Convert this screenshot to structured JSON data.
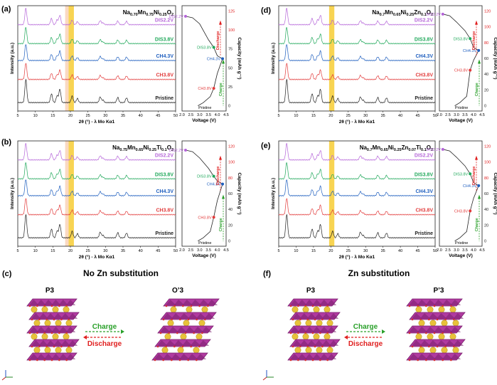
{
  "colors": {
    "DIS2.2V": "#b565d9",
    "DIS3.8V": "#1fa85a",
    "CH4.3V": "#1f5fbf",
    "CH3.8V": "#e23a3a",
    "Pristine": "#222222",
    "highlight": "#f5c518",
    "highlight_soft": "#f8c9a8",
    "discharge": "#e02020",
    "charge": "#2aa02a",
    "octa_dark": "#7a1f6e",
    "octa_light": "#b03aa0",
    "sphere": "#e8c23a"
  },
  "panels": [
    {
      "id": "a",
      "letter": "(a)",
      "title": "Na0.70Mn0.75Ni0.25O2",
      "title_html": [
        "Na",
        "0.70",
        "Mn",
        "0.75",
        "Ni",
        "0.25",
        "O",
        "2"
      ],
      "soft_band": true,
      "chart_data": {
        "type": "line",
        "xlabel": "2θ (°) - λ Mo Kα1",
        "ylabel": "Intensity (a.u.)",
        "xlim": [
          5,
          50
        ],
        "xticks": [
          5,
          10,
          15,
          20,
          25,
          30,
          35,
          40,
          45,
          50
        ],
        "series": [
          "DIS2.2V",
          "DIS3.8V",
          "CH4.3V",
          "CH3.8V",
          "Pristine"
        ],
        "highlight_2theta": [
          19.5,
          21.0
        ],
        "main_peaks_2theta": [
          7.3,
          14.6,
          16.2,
          17.0,
          20.5,
          22.0,
          28.5,
          29.3,
          33.5,
          36.0
        ]
      },
      "echem": {
        "type": "line",
        "xlabel": "Voltage (V)",
        "ylabel": "Capacity (mAh g⁻¹)",
        "xlim": [
          2.0,
          4.5
        ],
        "xticks": [
          "2.0",
          "2.5",
          "3.0",
          "3.5",
          "4.0",
          "4.5"
        ],
        "ylim": [
          0,
          125
        ],
        "yticks": [
          "0",
          "25",
          "50",
          "75",
          "100",
          "125"
        ],
        "points": [
          {
            "label": "DIS2.2V",
            "v": 2.2,
            "cap": 118
          },
          {
            "label": "DIS3.8V",
            "v": 3.8,
            "cap": 77
          },
          {
            "label": "CH4.3V",
            "v": 4.3,
            "cap": 62
          },
          {
            "label": "CH3.8V",
            "v": 3.8,
            "cap": 23
          },
          {
            "label": "Pristine",
            "v": 3.0,
            "cap": 0
          }
        ],
        "charge_label": "Charge",
        "discharge_label": "Discharge"
      }
    },
    {
      "id": "b",
      "letter": "(b)",
      "title": "Na0.75Mn0.65Ni0.25Ti0.1O2",
      "title_html": [
        "Na",
        "0.75",
        "Mn",
        "0.65",
        "Ni",
        "0.25",
        "Ti",
        "0.1",
        "O",
        "2"
      ],
      "soft_band": true,
      "chart_data": {
        "type": "line",
        "xlabel": "2θ (°) - λ Mo Kα1",
        "ylabel": "Intensity (a.u.)",
        "xlim": [
          5,
          50
        ],
        "xticks": [
          5,
          10,
          15,
          20,
          25,
          30,
          35,
          40,
          45,
          50
        ],
        "series": [
          "DIS2.2V",
          "DIS3.8V",
          "CH4.3V",
          "CH3.8V",
          "Pristine"
        ],
        "highlight_2theta": [
          19.5,
          21.0
        ],
        "main_peaks_2theta": [
          7.3,
          14.6,
          16.2,
          17.0,
          20.5,
          22.0,
          28.5,
          29.3,
          33.5,
          36.0
        ]
      },
      "echem": {
        "type": "line",
        "xlabel": "Voltage (V)",
        "ylabel": "Capacity (mAh g⁻¹)",
        "xlim": [
          2.0,
          4.5
        ],
        "xticks": [
          "2.0",
          "2.5",
          "3.0",
          "3.5",
          "4.0",
          "4.5"
        ],
        "ylim": [
          0,
          120
        ],
        "yticks": [
          "0",
          "20",
          "40",
          "60",
          "80",
          "100",
          "120"
        ],
        "points": [
          {
            "label": "DIS2.2V",
            "v": 2.2,
            "cap": 115
          },
          {
            "label": "DIS3.8V",
            "v": 3.8,
            "cap": 82
          },
          {
            "label": "CH4.3V",
            "v": 4.3,
            "cap": 72
          },
          {
            "label": "CH3.8V",
            "v": 3.8,
            "cap": 30
          },
          {
            "label": "Pristine",
            "v": 3.0,
            "cap": 0
          }
        ],
        "charge_label": "Charge",
        "discharge_label": "Discharge"
      }
    },
    {
      "id": "d",
      "letter": "(d)",
      "title": "Na0.7Mn0.65Ni0.25Zn0.1O2",
      "title_html": [
        "Na",
        "0.7",
        "Mn",
        "0.65",
        "Ni",
        "0.25",
        "Zn",
        "0.1",
        "O",
        "2"
      ],
      "soft_band": false,
      "chart_data": {
        "type": "line",
        "xlabel": "2θ (°) - λ Mo Kα1",
        "ylabel": "Intensity (a.u.)",
        "xlim": [
          5,
          50
        ],
        "xticks": [
          5,
          10,
          15,
          20,
          25,
          30,
          35,
          40,
          45,
          50
        ],
        "series": [
          "DIS2.2V",
          "DIS3.8V",
          "CH4.3V",
          "CH3.8V",
          "Pristine"
        ],
        "highlight_2theta": [
          19.5,
          21.0
        ],
        "main_peaks_2theta": [
          7.3,
          14.6,
          16.2,
          17.0,
          20.5,
          22.0,
          28.5,
          29.3,
          33.5,
          36.0
        ]
      },
      "echem": {
        "type": "line",
        "xlabel": "Voltage (V)",
        "ylabel": "Capacity (mAh g⁻¹)",
        "xlim": [
          2.0,
          4.5
        ],
        "xticks": [
          "2.0",
          "2.5",
          "3.0",
          "3.5",
          "4.0",
          "4.5"
        ],
        "ylim": [
          0,
          120
        ],
        "yticks": [
          "0",
          "20",
          "40",
          "60",
          "80",
          "100",
          "120"
        ],
        "points": [
          {
            "label": "DIS2.2V",
            "v": 2.2,
            "cap": 116
          },
          {
            "label": "DIS3.8V",
            "v": 3.8,
            "cap": 85
          },
          {
            "label": "CH4.3V",
            "v": 4.3,
            "cap": 70
          },
          {
            "label": "CH3.8V",
            "v": 3.8,
            "cap": 45
          },
          {
            "label": "Pristine",
            "v": 3.0,
            "cap": 0
          }
        ],
        "charge_label": "Charge",
        "discharge_label": "Discharge"
      }
    },
    {
      "id": "e",
      "letter": "(e)",
      "title": "Na0.7Mn0.65Ni0.25Zn0.07Ti0.1O2",
      "title_html": [
        "Na",
        "0.7",
        "Mn",
        "0.65",
        "Ni",
        "0.25",
        "Zn",
        "0.07",
        "Ti",
        "0.1",
        "O",
        "2"
      ],
      "soft_band": false,
      "chart_data": {
        "type": "line",
        "xlabel": "2θ (°) - λ Mo Kα1",
        "ylabel": "Intensity (a.u.)",
        "xlim": [
          5,
          50
        ],
        "xticks": [
          5,
          10,
          15,
          20,
          25,
          30,
          35,
          40,
          45,
          50
        ],
        "series": [
          "DIS2.2V",
          "DIS3.8V",
          "CH4.3V",
          "CH3.8V",
          "Pristine"
        ],
        "highlight_2theta": [
          19.5,
          21.0
        ],
        "main_peaks_2theta": [
          7.3,
          14.6,
          16.2,
          17.0,
          20.5,
          22.0,
          28.5,
          29.3,
          33.5,
          36.0
        ]
      },
      "echem": {
        "type": "line",
        "xlabel": "Voltage (V)",
        "ylabel": "Capacity (mAh g⁻¹)",
        "xlim": [
          2.0,
          4.5
        ],
        "xticks": [
          "2.0",
          "2.5",
          "3.0",
          "3.5",
          "4.0",
          "4.5"
        ],
        "ylim": [
          0,
          120
        ],
        "yticks": [
          "0",
          "20",
          "40",
          "60",
          "80",
          "100",
          "120"
        ],
        "points": [
          {
            "label": "DIS2.2V",
            "v": 2.2,
            "cap": 116
          },
          {
            "label": "DIS3.8V",
            "v": 3.8,
            "cap": 85
          },
          {
            "label": "CH4.3V",
            "v": 4.3,
            "cap": 70
          },
          {
            "label": "CH3.8V",
            "v": 3.8,
            "cap": 38
          },
          {
            "label": "Pristine",
            "v": 3.0,
            "cap": 0
          }
        ],
        "charge_label": "Charge",
        "discharge_label": "Discharge"
      }
    }
  ],
  "structures": [
    {
      "id": "c",
      "letter": "(c)",
      "title": "No Zn substitution",
      "left": "P3",
      "right": "O’3",
      "charge": "Charge",
      "discharge": "Discharge"
    },
    {
      "id": "f",
      "letter": "(f)",
      "title": "Zn substitution",
      "left": "P3",
      "right": "P’3",
      "charge": "Charge",
      "discharge": "Discharge"
    }
  ]
}
